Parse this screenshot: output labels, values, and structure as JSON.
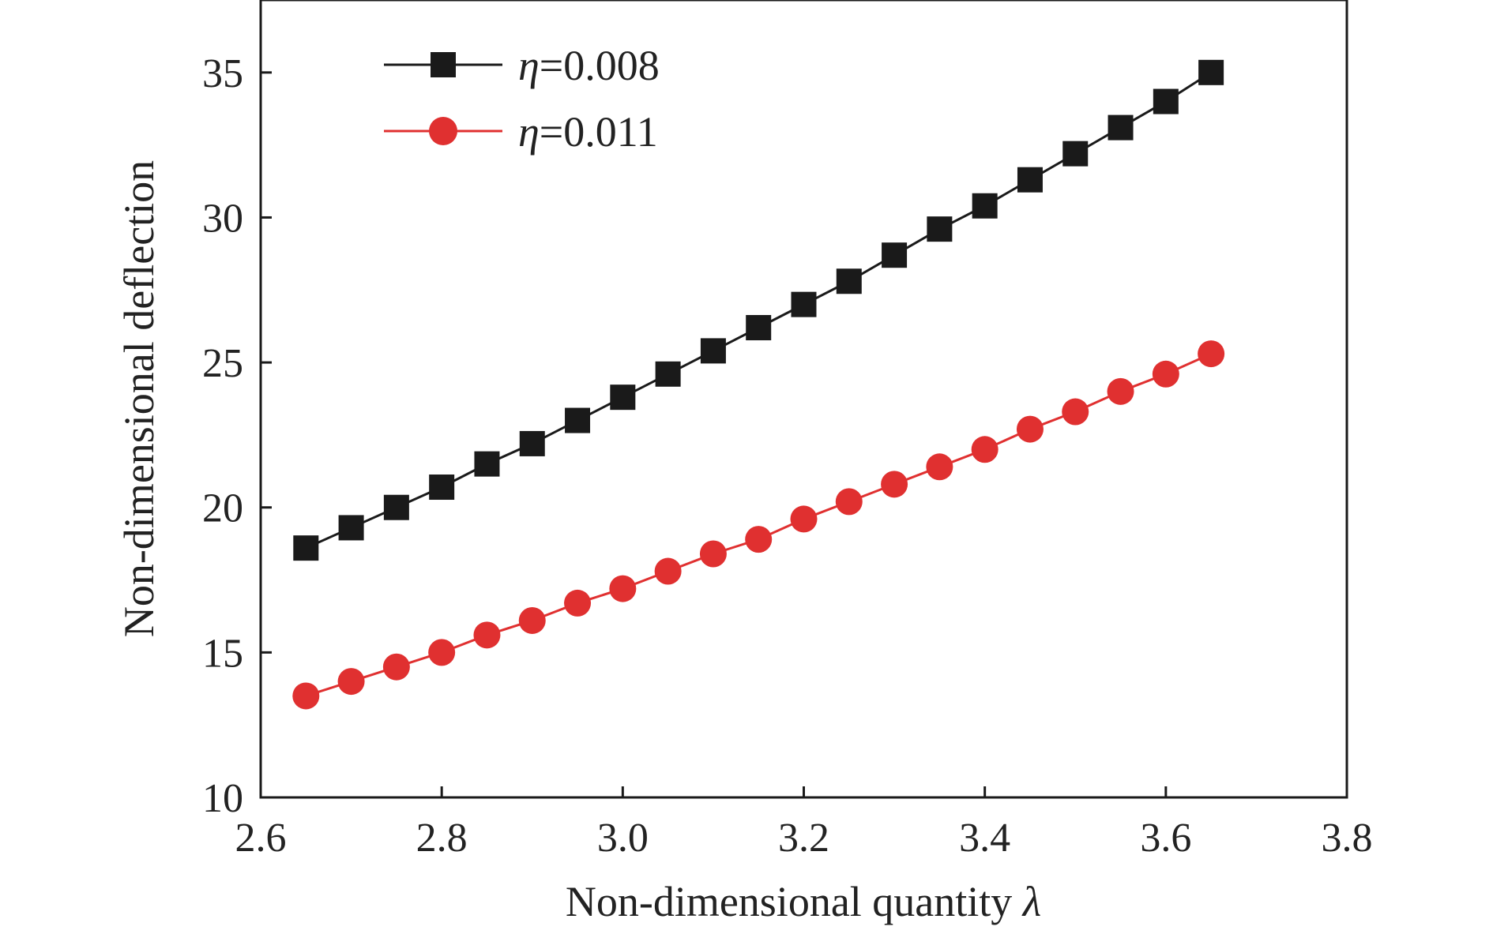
{
  "chart_data": {
    "type": "line",
    "title": "",
    "xlabel": {
      "text": "Non-dimensional quantity ",
      "symbol": "λ"
    },
    "ylabel": "Non-dimensional deflection",
    "xlim": [
      2.6,
      3.8
    ],
    "ylim": [
      10,
      37.5
    ],
    "xticks": [
      "2.6",
      "2.8",
      "3.0",
      "3.2",
      "3.4",
      "3.6",
      "3.8"
    ],
    "yticks": [
      "10",
      "15",
      "20",
      "25",
      "30",
      "35"
    ],
    "grid": false,
    "legend_position": "top-left",
    "x": [
      2.65,
      2.7,
      2.75,
      2.8,
      2.85,
      2.9,
      2.95,
      3.0,
      3.05,
      3.1,
      3.15,
      3.2,
      3.25,
      3.3,
      3.35,
      3.4,
      3.45,
      3.5,
      3.55,
      3.6,
      3.65
    ],
    "series": [
      {
        "name": {
          "symbol": "η",
          "text": "=0.008"
        },
        "color": "#1a1a1a",
        "marker": "square",
        "values": [
          18.6,
          19.3,
          20.0,
          20.7,
          21.5,
          22.2,
          23.0,
          23.8,
          24.6,
          25.4,
          26.2,
          27.0,
          27.8,
          28.7,
          29.6,
          30.4,
          31.3,
          32.2,
          33.1,
          34.0,
          35.0
        ]
      },
      {
        "name": {
          "symbol": "η",
          "text": "=0.011"
        },
        "color": "#e03030",
        "marker": "circle",
        "values": [
          13.5,
          14.0,
          14.5,
          15.0,
          15.6,
          16.1,
          16.7,
          17.2,
          17.8,
          18.4,
          18.9,
          19.6,
          20.2,
          20.8,
          21.4,
          22.0,
          22.7,
          23.3,
          24.0,
          24.6,
          25.3
        ]
      }
    ]
  }
}
